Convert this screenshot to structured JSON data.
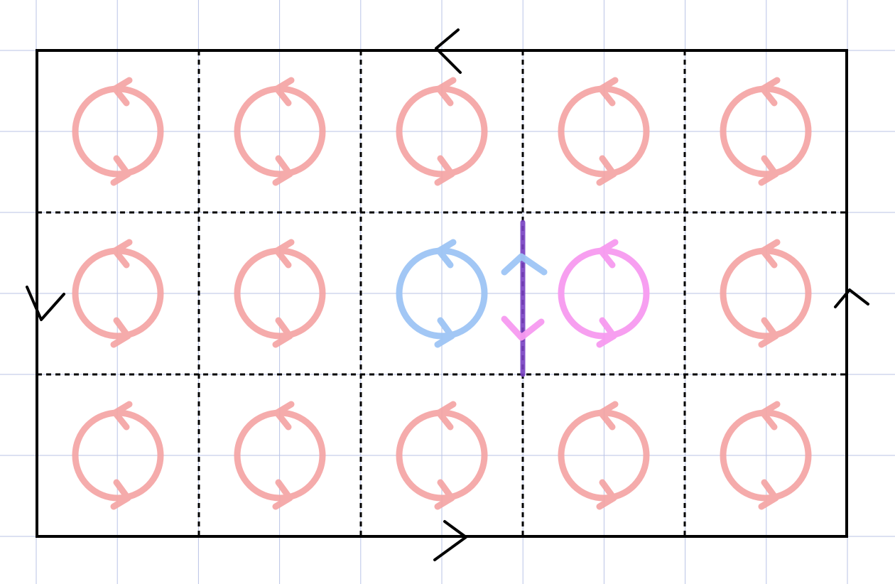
{
  "diagram": {
    "grid": {
      "rows": 3,
      "cols": 5
    },
    "colors": {
      "background": "#ffffff",
      "graph_paper": "#b9c3e6",
      "outline": "#000000",
      "cell_dividers": "#000000",
      "circulation_default": "#f4a3a3",
      "circulation_highlight_left": "#9ec5f5",
      "circulation_highlight_right": "#f79af0",
      "shared_edge": "#7a42c4",
      "shared_edge_up_arrow": "#9ec5f5",
      "shared_edge_down_arrow": "#f79af0"
    },
    "boundary_direction": "counterclockwise",
    "circulation_direction": "counterclockwise",
    "highlighted_cells": [
      {
        "row": 1,
        "col": 2,
        "color_key": "circulation_highlight_left"
      },
      {
        "row": 1,
        "col": 3,
        "color_key": "circulation_highlight_right"
      }
    ],
    "shared_edge": {
      "between": [
        [
          1,
          2
        ],
        [
          1,
          3
        ]
      ],
      "arrows": [
        "up-arrow-icon",
        "down-arrow-icon"
      ]
    },
    "icons": {
      "cell": "circulation-arrow-icon",
      "boundary_top": "left-arrow-icon",
      "boundary_bottom": "right-arrow-icon",
      "boundary_left": "down-arrow-icon",
      "boundary_right": "up-arrow-icon"
    }
  }
}
